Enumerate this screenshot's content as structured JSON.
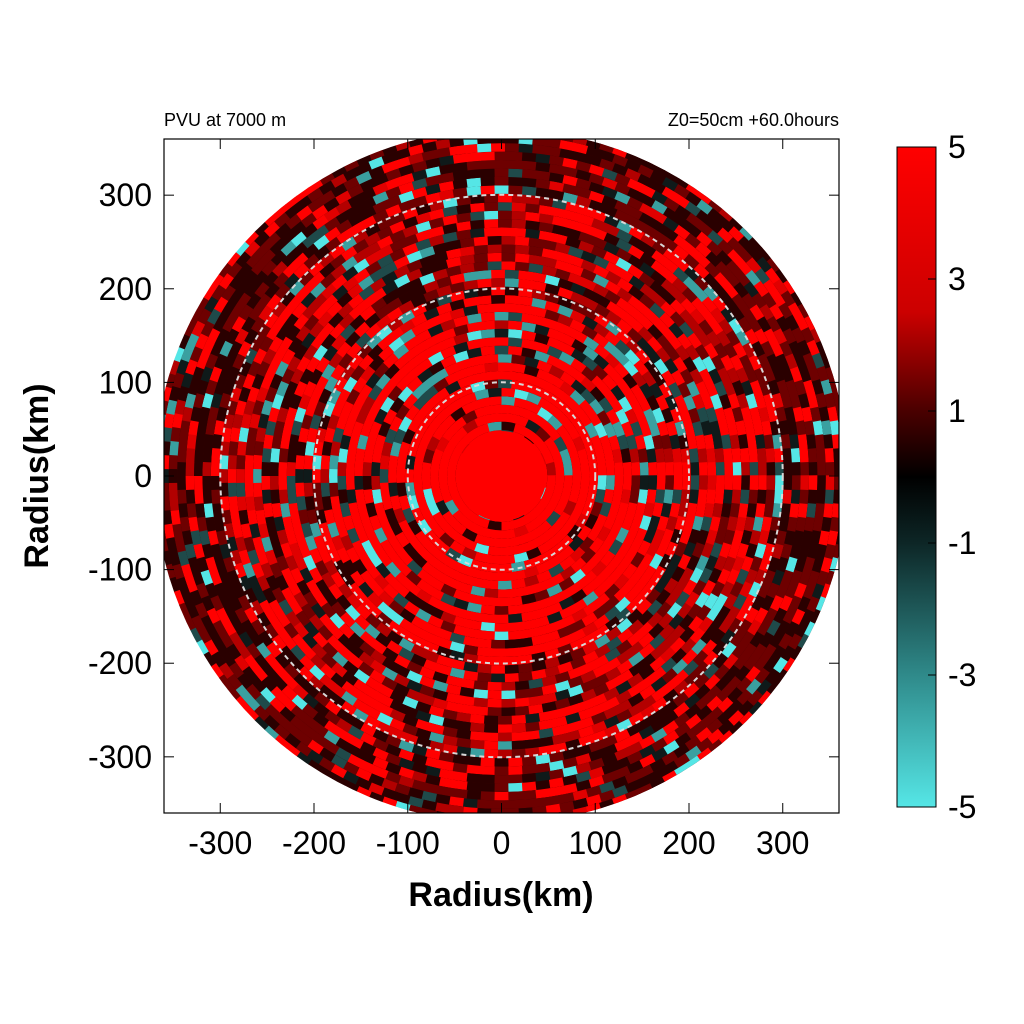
{
  "chart_data": {
    "type": "heatmap",
    "title_left": "PVU at  7000 m",
    "title_right": "Z0=50cm  +60.0hours",
    "xlabel": "Radius(km)",
    "ylabel": "Radius(km)",
    "xlim": [
      -360,
      360
    ],
    "ylim": [
      -360,
      360
    ],
    "xticks": [
      -300,
      -200,
      -100,
      0,
      100,
      200,
      300
    ],
    "yticks": [
      -300,
      -200,
      -100,
      0,
      100,
      200,
      300
    ],
    "xtick_labels": [
      "-300",
      "-200",
      "-100",
      "0",
      "100",
      "200",
      "300"
    ],
    "ytick_labels": [
      "-300",
      "-200",
      "-100",
      "0",
      "100",
      "200",
      "300"
    ],
    "domain_radius": 370,
    "reference_circles_km": [
      100,
      200,
      300
    ],
    "colorbar": {
      "range": [
        -5,
        5
      ],
      "ticks": [
        5,
        3,
        1,
        -1,
        -3,
        -5
      ],
      "tick_labels": [
        "5",
        "3",
        "1",
        "-1",
        "-3",
        "-5"
      ],
      "colors": {
        "max": "#ff0000",
        "mid": "#000000",
        "min": "#55e6e6"
      }
    }
  }
}
